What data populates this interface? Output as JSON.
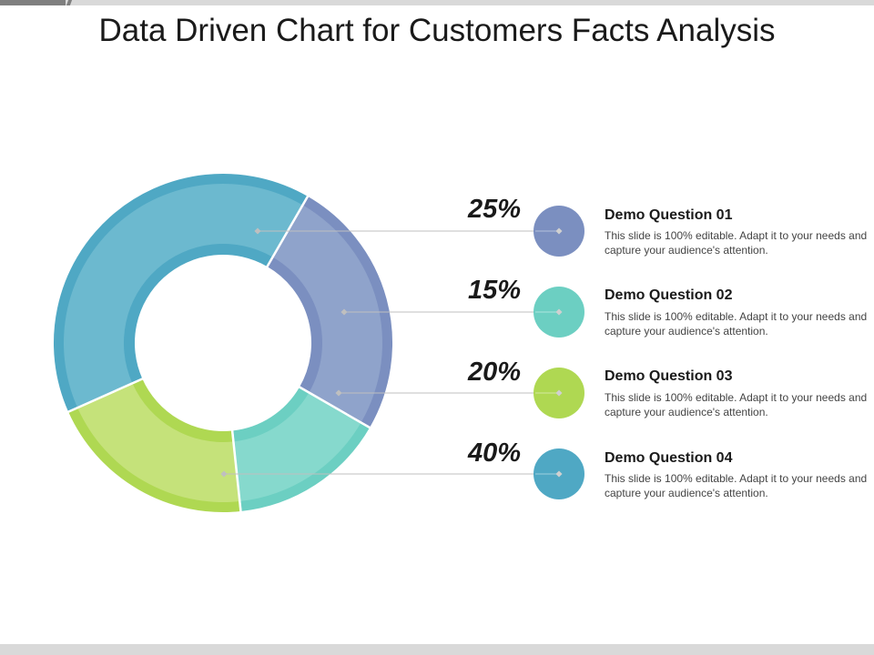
{
  "page": {
    "title": "Data Driven Chart for Customers Facts Analysis"
  },
  "chart_data": {
    "type": "pie",
    "variant": "donut",
    "title": "Data Driven Chart for Customers Facts Analysis",
    "categories": [
      "Demo Question 01",
      "Demo Question 02",
      "Demo Question 03",
      "Demo Question 04"
    ],
    "values": [
      25,
      15,
      20,
      40
    ],
    "unit": "%",
    "labels": [
      "25%",
      "15%",
      "20%",
      "40%"
    ],
    "colors": [
      "#8fa3cb",
      "#86d9cd",
      "#c5e27a",
      "#6cb9cf"
    ],
    "border_colors": [
      "#7b8fc0",
      "#6ccfc2",
      "#afd852",
      "#4fa8c4"
    ],
    "legend_placement": "right"
  },
  "items": [
    {
      "pct": "25%",
      "title": "Demo Question 01",
      "desc": "This slide is 100% editable. Adapt it to your needs and capture your audience's attention.",
      "color": "#7b8fc0"
    },
    {
      "pct": "15%",
      "title": "Demo Question 02",
      "desc": "This slide is 100% editable. Adapt it to your needs and capture your audience's attention.",
      "color": "#6ccfc2"
    },
    {
      "pct": "20%",
      "title": "Demo Question 03",
      "desc": "This slide is 100% editable. Adapt it to your needs and capture your audience's attention.",
      "color": "#afd852"
    },
    {
      "pct": "40%",
      "title": "Demo Question 04",
      "desc": "This slide is 100% editable. Adapt it to your needs and capture your audience's attention.",
      "color": "#4fa8c4"
    }
  ]
}
